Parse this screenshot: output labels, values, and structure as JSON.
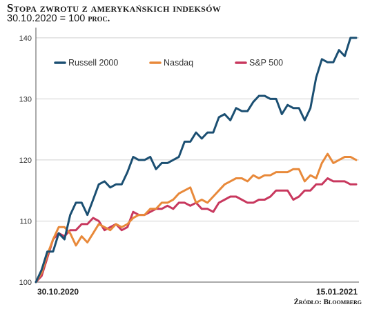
{
  "header": {
    "title": "Stopa zwrotu z amerykańskich indeksów",
    "subtitle_main": "30.10.2020 = 100",
    "subtitle_unit": "proc."
  },
  "source": "Źródło: Bloomberg",
  "chart_data": {
    "type": "line",
    "ylim": [
      100,
      141
    ],
    "yticks": [
      100,
      110,
      120,
      130,
      140
    ],
    "grid": true,
    "legend_position": "top-left",
    "x_labels": [
      "30.10.2020",
      "15.01.2021"
    ],
    "series": [
      {
        "name": "Russell 2000",
        "color": "#1b4f72",
        "values": [
          100,
          102,
          105,
          105,
          108,
          107,
          111,
          113,
          113,
          111,
          113.5,
          116,
          116.5,
          115.5,
          116,
          116,
          118,
          120.5,
          120,
          120,
          120.5,
          118.5,
          119.5,
          119.5,
          120,
          120.5,
          123,
          123,
          124.5,
          123.5,
          124.5,
          124.5,
          127,
          127.5,
          126.5,
          128.5,
          128,
          128,
          129.5,
          130.5,
          130.5,
          130,
          130,
          127.5,
          129,
          128.5,
          128.5,
          126.5,
          128.5,
          133.5,
          136.5,
          136,
          136,
          138,
          137,
          140,
          140
        ]
      },
      {
        "name": "Nasdaq",
        "color": "#e8893a",
        "values": [
          100,
          101.5,
          104.5,
          107,
          109,
          109,
          108,
          106,
          107.5,
          106.5,
          108,
          109.5,
          109,
          108.5,
          109.5,
          109,
          109.5,
          110.5,
          111,
          111,
          112,
          112,
          113,
          113,
          113.5,
          114.5,
          115,
          115.5,
          113,
          113.5,
          113,
          114,
          115,
          116,
          116.5,
          117,
          117,
          116.5,
          117.5,
          117,
          117.5,
          117.5,
          118,
          118,
          118,
          118.5,
          118.5,
          116.5,
          117.5,
          117,
          119.5,
          121,
          119.5,
          120,
          120.5,
          120.5,
          120
        ]
      },
      {
        "name": "S&P 500",
        "color": "#c8385e",
        "values": [
          100,
          101,
          104,
          107,
          108,
          107.5,
          108.5,
          108.5,
          109.5,
          109.5,
          110.5,
          110,
          108.5,
          109,
          109.5,
          108.5,
          109,
          111.5,
          111,
          111,
          111.5,
          112,
          112,
          112.5,
          112,
          113,
          113,
          112.5,
          113,
          112,
          112,
          111.5,
          113,
          113.5,
          114,
          114,
          113.5,
          113,
          113,
          113.5,
          113.5,
          114,
          115,
          115,
          115,
          113.5,
          114,
          115,
          115,
          116,
          116,
          117,
          116.5,
          116.5,
          116.5,
          116,
          116
        ]
      }
    ]
  }
}
